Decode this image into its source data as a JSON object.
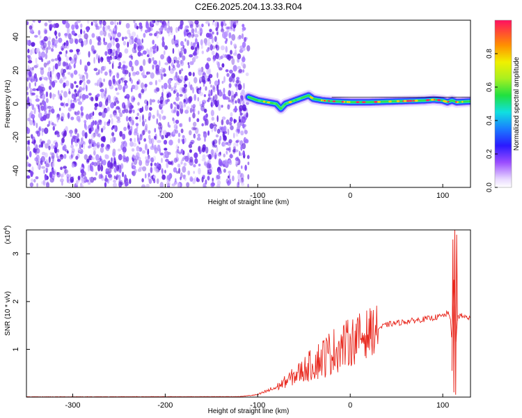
{
  "chart_data": [
    {
      "type": "heatmap",
      "title": "C2E6.2025.204.13.33.R04",
      "xlabel": "Height of straight line (km)",
      "ylabel": "Frequency (Hz)",
      "xlim": [
        -350,
        130
      ],
      "ylim": [
        -50,
        50
      ],
      "x_ticks": [
        -300,
        -200,
        -100,
        0,
        100
      ],
      "y_ticks": [
        -40,
        -20,
        0,
        20,
        40
      ],
      "noise_region_x": [
        -350,
        -110
      ],
      "ridge": {
        "x": [
          -110,
          -100,
          -90,
          -80,
          -75,
          -70,
          -60,
          -50,
          -45,
          -40,
          -30,
          -20,
          0,
          20,
          50,
          80,
          90,
          100,
          105,
          110,
          115,
          130
        ],
        "y": [
          4,
          2,
          1,
          0,
          -3,
          0,
          2,
          4,
          5,
          3,
          2,
          1.5,
          1,
          1,
          1.5,
          2,
          2.5,
          2,
          1,
          2,
          1,
          1.5
        ]
      },
      "colorbar": {
        "label": "Normalized spectral amplitude",
        "range": [
          0,
          1
        ],
        "ticks": [
          "0.0",
          "0.2",
          "0.4",
          "0.6",
          "0.8"
        ]
      }
    },
    {
      "type": "line",
      "xlabel": "Height of straight line (km)",
      "ylabel": "SNR (10 * v/v)",
      "y_multiplier": "(x10",
      "y_multiplier_exp": "4",
      "xlim": [
        -350,
        130
      ],
      "ylim": [
        0,
        3.5
      ],
      "x_ticks": [
        -300,
        -200,
        -100,
        0,
        100
      ],
      "y_ticks": [
        1,
        2,
        3
      ],
      "color": "#e8281e",
      "envelope": {
        "x": [
          -350,
          -120,
          -100,
          -80,
          -60,
          -40,
          -20,
          0,
          20,
          40,
          60,
          80,
          90,
          100,
          105,
          108,
          110,
          112,
          114,
          116,
          120,
          130
        ],
        "y": [
          0.005,
          0.01,
          0.05,
          0.2,
          0.45,
          0.7,
          0.95,
          1.15,
          1.35,
          1.52,
          1.58,
          1.63,
          1.66,
          1.7,
          1.75,
          1.7,
          1.2,
          2.4,
          1.0,
          1.7,
          1.7,
          1.65
        ]
      },
      "spikes": [
        {
          "x": 110,
          "y": 0.55
        },
        {
          "x": 111,
          "y": 3.3
        },
        {
          "x": 112,
          "y": 0.1
        },
        {
          "x": 113,
          "y": 3.5
        },
        {
          "x": 114,
          "y": 0.05
        },
        {
          "x": 115,
          "y": 3.4
        },
        {
          "x": 116,
          "y": 1.6
        }
      ],
      "noise_amplitude_peak_x": -30
    }
  ]
}
